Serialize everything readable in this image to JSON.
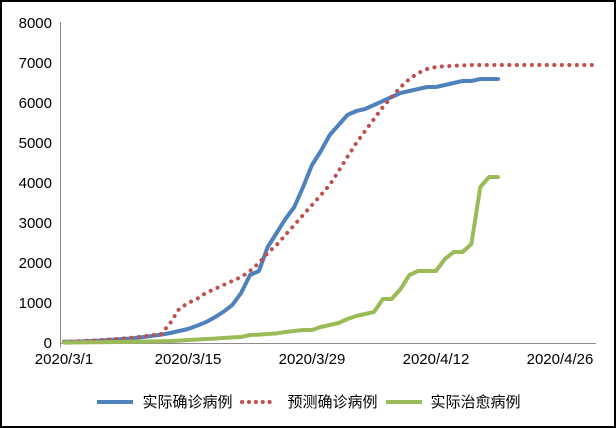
{
  "figure": {
    "background_color": "#FFFFFF",
    "border_color": "#000000",
    "axis_line_color": "#8C8C8C"
  },
  "chart_data": {
    "type": "line",
    "title": "",
    "xlabel": "",
    "ylabel": "",
    "x_axis": {
      "start_date": "2020/3/1",
      "end_date": "2020/4/30",
      "unit": "day",
      "tick_interval_days": 14,
      "tick_labels": [
        "2020/3/1",
        "2020/3/15",
        "2020/3/29",
        "2020/4/12",
        "2020/4/26"
      ]
    },
    "y_axis": {
      "min": 0,
      "max": 8000,
      "step": 1000,
      "ticks": [
        0,
        1000,
        2000,
        3000,
        4000,
        5000,
        6000,
        7000,
        8000
      ]
    },
    "grid": false,
    "legend_position": "bottom",
    "series": [
      {
        "name": "实际确诊病例",
        "color": "#4F81BD",
        "style": "solid",
        "start_date": "2020/3/1",
        "values": [
          30,
          35,
          40,
          50,
          60,
          75,
          90,
          105,
          125,
          150,
          180,
          210,
          250,
          300,
          350,
          430,
          520,
          640,
          780,
          950,
          1250,
          1700,
          1800,
          2400,
          2750,
          3100,
          3400,
          3900,
          4450,
          4800,
          5200,
          5450,
          5700,
          5800,
          5850,
          5950,
          6050,
          6150,
          6250,
          6300,
          6350,
          6400,
          6400,
          6450,
          6500,
          6550,
          6550,
          6600,
          6600,
          6600
        ]
      },
      {
        "name": "预测确诊病例",
        "color": "#C0504D",
        "style": "dotted",
        "start_date": "2020/3/1",
        "values": [
          30,
          40,
          50,
          60,
          70,
          85,
          100,
          120,
          140,
          165,
          195,
          225,
          500,
          850,
          1000,
          1100,
          1250,
          1350,
          1450,
          1550,
          1650,
          1800,
          2000,
          2250,
          2450,
          2700,
          2950,
          3200,
          3450,
          3700,
          3950,
          4300,
          4650,
          5000,
          5300,
          5600,
          5900,
          6150,
          6400,
          6600,
          6750,
          6850,
          6900,
          6920,
          6930,
          6940,
          6950,
          6950,
          6950,
          6950,
          6950,
          6950,
          6950,
          6950,
          6950,
          6950,
          6950,
          6950,
          6950,
          6950,
          6950
        ]
      },
      {
        "name": "实际治愈病例",
        "color": "#9BBB59",
        "style": "solid",
        "start_date": "2020/3/1",
        "values": [
          10,
          12,
          15,
          18,
          20,
          22,
          25,
          28,
          30,
          35,
          40,
          45,
          50,
          60,
          75,
          85,
          100,
          110,
          125,
          140,
          150,
          200,
          210,
          225,
          240,
          275,
          300,
          325,
          325,
          400,
          450,
          500,
          600,
          675,
          725,
          775,
          1100,
          1100,
          1350,
          1700,
          1800,
          1800,
          1800,
          2100,
          2275,
          2275,
          2475,
          3900,
          4150,
          4150
        ]
      }
    ]
  }
}
